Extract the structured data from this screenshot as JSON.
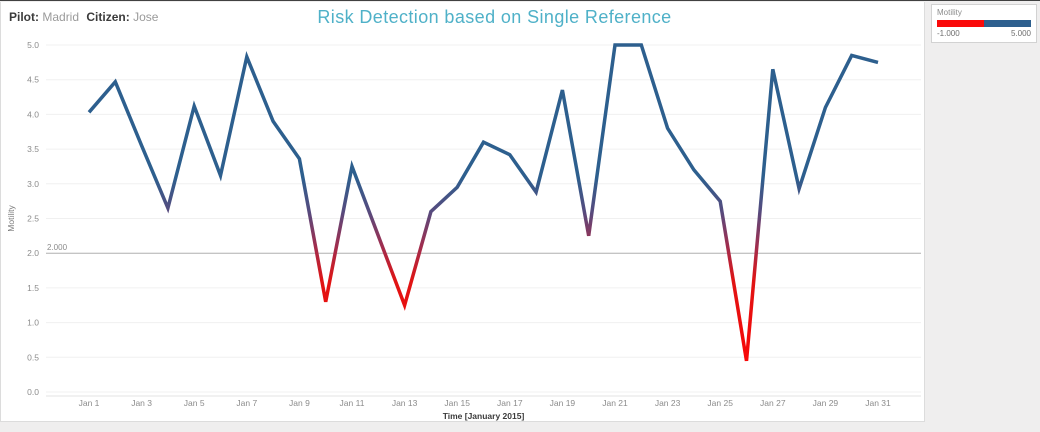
{
  "header": {
    "pilot_label": "Pilot:",
    "pilot_value": "Madrid",
    "citizen_label": "Citizen:",
    "citizen_value": "Jose",
    "title": "Risk Detection based on Single Reference"
  },
  "legend": {
    "title": "Motility",
    "min_label": "-1.000",
    "max_label": "5.000",
    "low_color": "#fa0a0a",
    "high_color": "#2d5f8e"
  },
  "colors": {
    "title_teal": "#4fb1c8",
    "line_blue": "#2d5f8e",
    "line_red": "#fa0a0a",
    "reference_line_gray": "#b4b4b4",
    "tick_label_gray": "#8b8b8b"
  },
  "chart_data": {
    "type": "line",
    "title": "Risk Detection based on Single Reference",
    "xlabel": "Time [January 2015]",
    "ylabel": "Motility",
    "ylim": [
      0,
      5
    ],
    "y_tick_step": 0.5,
    "grid": "horizontal",
    "legend_position": "top-right",
    "x_tick_labels": [
      "Jan 1",
      "Jan 3",
      "Jan 5",
      "Jan 7",
      "Jan 9",
      "Jan 11",
      "Jan 13",
      "Jan 15",
      "Jan 17",
      "Jan 19",
      "Jan 21",
      "Jan 23",
      "Jan 25",
      "Jan 27",
      "Jan 29",
      "Jan 31"
    ],
    "reference_line": {
      "value": 2,
      "label": "2.000"
    },
    "color_encoding": {
      "field": "Motility",
      "domain": [
        -1,
        5
      ],
      "threshold": 2,
      "low_color": "#fa0a0a",
      "high_color": "#2d5f8e",
      "gradient_stops": [
        {
          "value": 5.0,
          "color": "#2d5f8e"
        },
        {
          "value": 3.1,
          "color": "#2d5f8e"
        },
        {
          "value": 2.6,
          "color": "#564b7e"
        },
        {
          "value": 2.1,
          "color": "#a02d4e"
        },
        {
          "value": 1.6,
          "color": "#e01414"
        },
        {
          "value": 0.3,
          "color": "#fb0606"
        }
      ]
    },
    "series": [
      {
        "name": "Motility",
        "x": [
          1,
          2,
          3,
          4,
          5,
          6,
          7,
          8,
          9,
          10,
          11,
          12,
          13,
          14,
          15,
          16,
          17,
          18,
          19,
          20,
          21,
          22,
          23,
          24,
          25,
          26,
          27,
          28,
          29,
          30,
          31
        ],
        "values": [
          4.03,
          4.47,
          3.55,
          2.65,
          4.12,
          3.12,
          4.83,
          3.9,
          3.36,
          1.3,
          3.25,
          2.25,
          1.25,
          2.6,
          2.95,
          3.6,
          3.42,
          2.88,
          4.35,
          2.25,
          5.0,
          5.0,
          3.8,
          3.2,
          2.75,
          0.45,
          4.65,
          2.93,
          4.1,
          4.85,
          4.75
        ]
      }
    ]
  }
}
